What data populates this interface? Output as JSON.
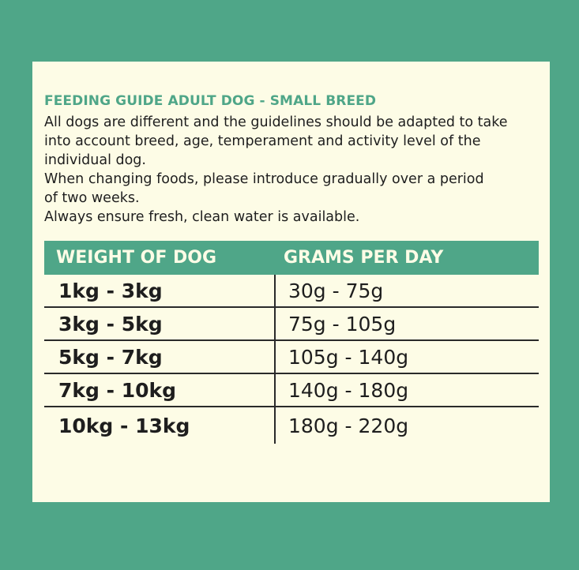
{
  "colors": {
    "background": "#4fa688",
    "panel": "#fdfce6",
    "accent": "#4fa688",
    "text": "#1e1e1e"
  },
  "title": "FEEDING GUIDE ADULT DOG - SMALL BREED",
  "intro": [
    "All dogs are different and the guidelines should be adapted to take into account breed, age, temperament and activity level of the individual dog.",
    "When changing foods, please introduce gradually over a period of two weeks.",
    "Always ensure fresh, clean water is available."
  ],
  "table": {
    "headers": [
      "WEIGHT OF DOG",
      "GRAMS PER DAY"
    ],
    "rows": [
      [
        "1kg - 3kg",
        "30g - 75g"
      ],
      [
        "3kg - 5kg",
        "75g - 105g"
      ],
      [
        "5kg - 7kg",
        "105g - 140g"
      ],
      [
        "7kg - 10kg",
        "140g - 180g"
      ],
      [
        "10kg - 13kg",
        "180g - 220g"
      ]
    ]
  }
}
